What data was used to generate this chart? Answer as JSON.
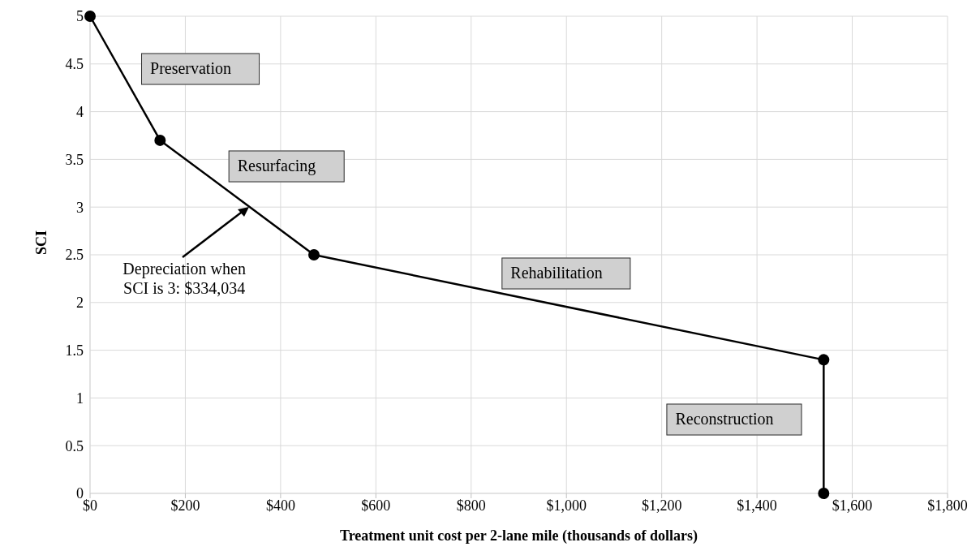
{
  "chart_data": {
    "type": "line",
    "xlabel": "Treatment unit cost per 2-lane mile (thousands of dollars)",
    "ylabel": "SCI",
    "x": [
      0,
      147,
      470,
      1540,
      1540
    ],
    "series": [
      {
        "color": "#000000",
        "values": [
          5,
          3.7,
          2.5,
          1.4,
          0
        ]
      }
    ],
    "xlim": [
      0,
      1800
    ],
    "xticks": [
      {
        "value": 0,
        "label": "$0"
      },
      {
        "value": 200,
        "label": "$200"
      },
      {
        "value": 400,
        "label": "$400"
      },
      {
        "value": 600,
        "label": "$600"
      },
      {
        "value": 800,
        "label": "$800"
      },
      {
        "value": 1000,
        "label": "$1,000"
      },
      {
        "value": 1200,
        "label": "$1,200"
      },
      {
        "value": 1400,
        "label": "$1,400"
      },
      {
        "value": 1600,
        "label": "$1,600"
      },
      {
        "value": 1800,
        "label": "$1,800"
      }
    ],
    "ylim": [
      0,
      5
    ],
    "yticks": [
      0,
      0.5,
      1,
      1.5,
      2,
      2.5,
      3,
      3.5,
      4,
      4.5,
      5
    ],
    "grid": true,
    "marker": "circle",
    "line_style": "solid",
    "annotations": [
      "Preservation",
      "Resurfacing",
      "Rehabilitation",
      "Reconstruction",
      {
        "text": "Depreciation when SCI is 3: $334,034",
        "x": 334,
        "y": 3
      }
    ]
  }
}
